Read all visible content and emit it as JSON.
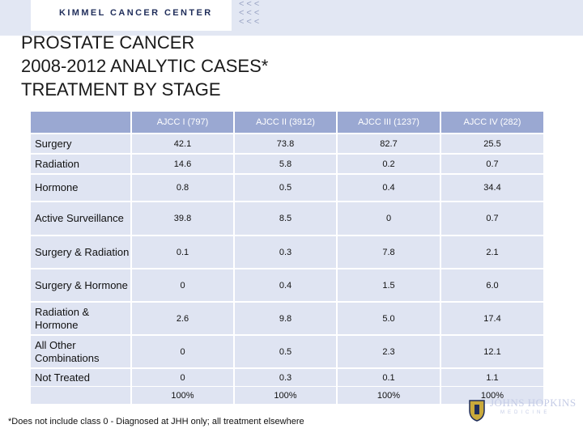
{
  "header": {
    "brand": "KIMMEL CANCER CENTER",
    "chevrons": [
      "<<<",
      "<<<",
      "<<<"
    ]
  },
  "title_lines": [
    "PROSTATE CANCER",
    "2008-2012 ANALYTIC CASES*",
    "TREATMENT BY STAGE"
  ],
  "table": {
    "columns": [
      "AJCC I (797)",
      "AJCC II (3912)",
      "AJCC III (1237)",
      "AJCC IV (282)"
    ],
    "rows": [
      {
        "label": "Surgery",
        "values": [
          "42.1",
          "73.8",
          "82.7",
          "25.5"
        ]
      },
      {
        "label": "Radiation",
        "values": [
          "14.6",
          "5.8",
          "0.2",
          "0.7"
        ]
      },
      {
        "label": "Hormone",
        "values": [
          "0.8",
          "0.5",
          "0.4",
          "34.4"
        ]
      },
      {
        "label": "Active Surveillance",
        "values": [
          "39.8",
          "8.5",
          "0",
          "0.7"
        ]
      },
      {
        "label": "Surgery & Radiation",
        "values": [
          "0.1",
          "0.3",
          "7.8",
          "2.1"
        ]
      },
      {
        "label": "Surgery & Hormone",
        "values": [
          "0",
          "0.4",
          "1.5",
          "6.0"
        ]
      },
      {
        "label": "Radiation & Hormone",
        "values": [
          "2.6",
          "9.8",
          "5.0",
          "17.4"
        ]
      },
      {
        "label": "All Other Combinations",
        "values": [
          "0",
          "0.5",
          "2.3",
          "12.1"
        ]
      },
      {
        "label": "Not Treated",
        "values": [
          "0",
          "0.3",
          "0.1",
          "1.1"
        ]
      }
    ],
    "totals": [
      "100%",
      "100%",
      "100%",
      "100%"
    ]
  },
  "footnote": "*Does not include class 0 - Diagnosed at JHH only; all treatment elsewhere",
  "logo": {
    "name": "JOHNS HOPKINS",
    "sub": "MEDICINE",
    "icon": "hopkins-shield-icon"
  },
  "colors": {
    "header_fill": "#9aa8d2",
    "row_fill": "#dfe4f2",
    "top_band": "#e2e7f3",
    "brand": "#1f2d5a"
  }
}
